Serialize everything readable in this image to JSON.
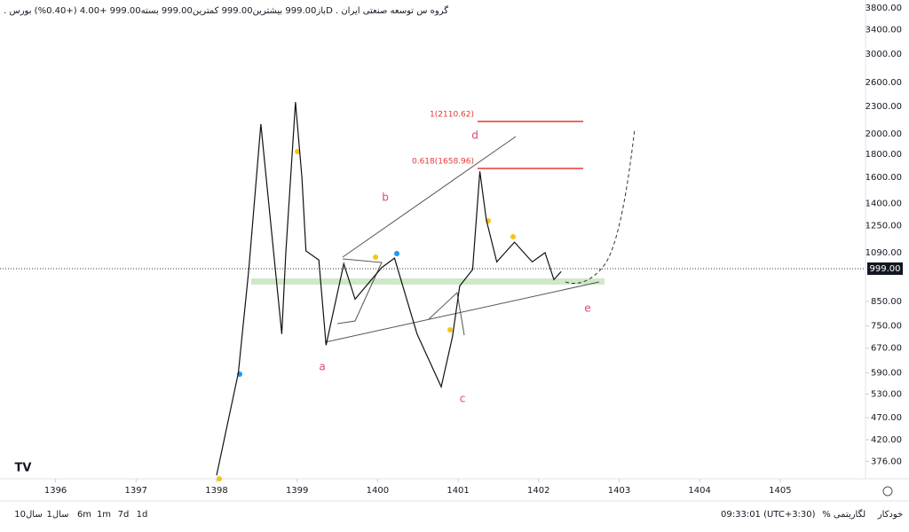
{
  "chart_data": {
    "type": "line",
    "title": "باز999.00  بیشترین999.00  کمترین999.00  بسته999.00  +4.00  (+0.40%)  بورس . 1D . گروه س توسعه صنعتی ایران",
    "current_price": "999.00",
    "log_scale": true,
    "x": [
      1398.0,
      1398.27,
      1398.4,
      1398.55,
      1398.67,
      1398.81,
      1398.86,
      1398.98,
      1399.06,
      1399.11,
      1399.27,
      1399.36,
      1399.58,
      1399.72,
      1400.05,
      1400.21,
      1400.49,
      1400.79,
      1400.93,
      1401.02,
      1401.18,
      1401.27,
      1401.35,
      1401.48,
      1401.7,
      1401.92,
      1402.08,
      1402.19,
      1402.28
    ],
    "series": [
      {
        "name": "price",
        "color": "#111111",
        "values": [
          350,
          590,
          1000,
          2100,
          1280,
          720,
          1090,
          2350,
          1600,
          1100,
          1050,
          680,
          1030,
          860,
          1010,
          1060,
          720,
          550,
          710,
          920,
          1000,
          1650,
          1290,
          1040,
          1150,
          1040,
          1090,
          950,
          990
        ]
      }
    ],
    "xlim": [
      1395.31,
      1406.06
    ],
    "xticks": [
      1396,
      1397,
      1398,
      1399,
      1400,
      1401,
      1402,
      1403,
      1404,
      1405
    ],
    "ylim": [
      344,
      3955
    ],
    "yticks": [
      {
        "value": 376,
        "label": "376.00"
      },
      {
        "value": 420,
        "label": "420.00"
      },
      {
        "value": 470,
        "label": "470.00"
      },
      {
        "value": 530,
        "label": "530.00"
      },
      {
        "value": 590,
        "label": "590.00"
      },
      {
        "value": 670,
        "label": "670.00"
      },
      {
        "value": 750,
        "label": "750.00"
      },
      {
        "value": 850,
        "label": "850.00"
      },
      {
        "value": 1090,
        "label": "1090.00"
      },
      {
        "value": 1250,
        "label": "1250.00"
      },
      {
        "value": 1400,
        "label": "1400.00"
      },
      {
        "value": 1600,
        "label": "1600.00"
      },
      {
        "value": 1800,
        "label": "1800.00"
      },
      {
        "value": 2000,
        "label": "2000.00"
      },
      {
        "value": 2300,
        "label": "2300.00"
      },
      {
        "value": 2600,
        "label": "2600.00"
      },
      {
        "value": 3000,
        "label": "3000.00"
      },
      {
        "value": 3400,
        "label": "3400.00"
      },
      {
        "value": 3800,
        "label": "3800.00"
      }
    ],
    "annotations": [
      "a",
      "b",
      "c",
      "d",
      "e",
      "1(2110.62)",
      "0.618(1658.96)"
    ],
    "toolbar": [
      "10سال",
      "1سال",
      "6m",
      "1m",
      "7d",
      "1d"
    ],
    "clock": "09:33:01 (UTC+3:30)",
    "scale_buttons": [
      "%",
      "لگاریتمی",
      "خودکار"
    ]
  }
}
